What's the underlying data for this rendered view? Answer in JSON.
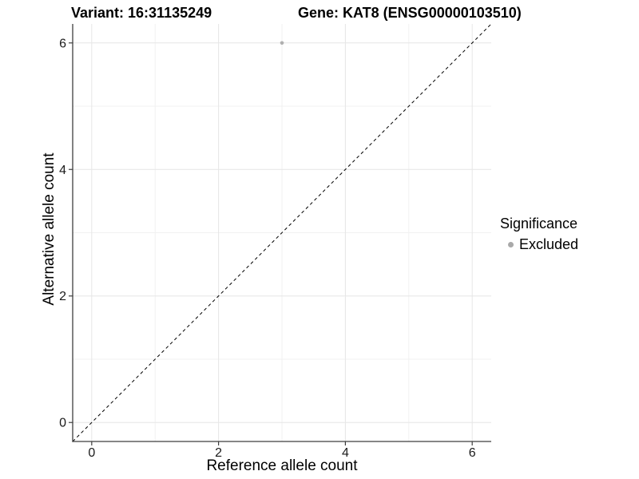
{
  "chart_data": {
    "type": "scatter",
    "title_left": "Variant: 16:31135249",
    "title_right": "Gene: KAT8 (ENSG00000103510)",
    "xlabel": "Reference allele count",
    "ylabel": "Alternative allele count",
    "xlim": [
      -0.3,
      6.3
    ],
    "ylim": [
      -0.3,
      6.3
    ],
    "x_ticks": [
      0,
      2,
      4,
      6
    ],
    "y_ticks": [
      0,
      2,
      4,
      6
    ],
    "x_minor": [
      1,
      3,
      5
    ],
    "y_minor": [
      1,
      3,
      5
    ],
    "grid": true,
    "identity_line": {
      "style": "dashed",
      "from": [
        -0.3,
        -0.3
      ],
      "to": [
        6.3,
        6.3
      ],
      "color": "#000000"
    },
    "series": [
      {
        "name": "Excluded",
        "color": "#b0b0b0",
        "points": [
          {
            "x": 3,
            "y": 6
          }
        ]
      }
    ],
    "legend": {
      "title": "Significance",
      "position": "right",
      "items": [
        {
          "label": "Excluded",
          "color": "#a9a9a9"
        }
      ]
    },
    "style": {
      "background": "#ffffff",
      "axis": "#3e3e3e",
      "tick_text": "#1a1a1a",
      "grid_major": "#e6e6e6",
      "grid_minor": "#f1f1f1"
    }
  }
}
